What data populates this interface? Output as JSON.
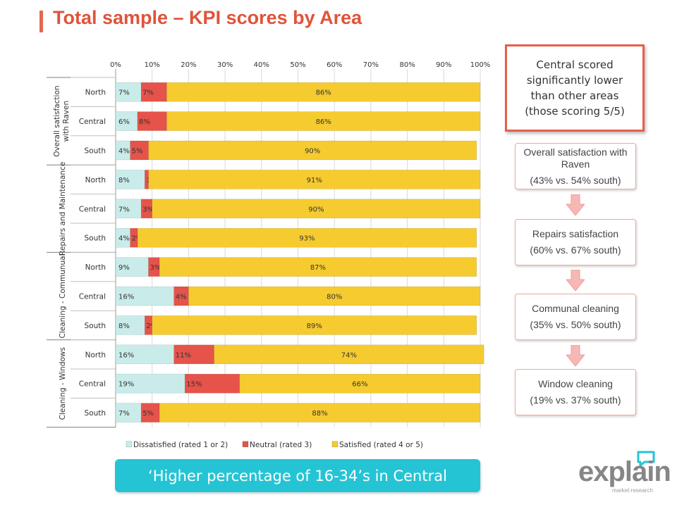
{
  "page": {
    "title": "Total sample – KPI scores by Area"
  },
  "chart_data": {
    "type": "bar",
    "orientation": "horizontal",
    "stacked": "percent",
    "x_ticks": [
      "0%",
      "10%",
      "20%",
      "30%",
      "40%",
      "50%",
      "60%",
      "70%",
      "80%",
      "90%",
      "100%"
    ],
    "xlim": [
      0,
      100
    ],
    "legend_position": "bottom",
    "groups": [
      "Overall satisfaction with Raven",
      "Repairs and Maintenance",
      "Cleaning - Communual",
      "Cleaning - Windows"
    ],
    "series": [
      {
        "name": "Dissatisfied (rated 1 or 2)",
        "color": "#c9ecea"
      },
      {
        "name": "Neutral (rated 3)",
        "color": "#e5534a"
      },
      {
        "name": "Satisfied (rated 4 or 5)",
        "color": "#f6cb2f"
      }
    ],
    "rows": [
      {
        "group": 0,
        "category": "North",
        "values": [
          7,
          7,
          86
        ]
      },
      {
        "group": 0,
        "category": "Central",
        "values": [
          6,
          8,
          86
        ]
      },
      {
        "group": 0,
        "category": "South",
        "values": [
          4,
          5,
          90
        ]
      },
      {
        "group": 1,
        "category": "North",
        "values": [
          8,
          1,
          91
        ]
      },
      {
        "group": 1,
        "category": "Central",
        "values": [
          7,
          3,
          90
        ]
      },
      {
        "group": 1,
        "category": "South",
        "values": [
          4,
          2,
          93
        ]
      },
      {
        "group": 2,
        "category": "North",
        "values": [
          9,
          3,
          87
        ]
      },
      {
        "group": 2,
        "category": "Central",
        "values": [
          16,
          4,
          80
        ]
      },
      {
        "group": 2,
        "category": "South",
        "values": [
          8,
          2,
          89
        ]
      },
      {
        "group": 3,
        "category": "North",
        "values": [
          16,
          11,
          74
        ]
      },
      {
        "group": 3,
        "category": "Central",
        "values": [
          19,
          15,
          66
        ]
      },
      {
        "group": 3,
        "category": "South",
        "values": [
          7,
          5,
          88
        ]
      }
    ],
    "gridlines": true
  },
  "callout": {
    "text": "Central scored significantly lower than other areas (those scoring 5/5)"
  },
  "flow": [
    {
      "line1": "Overall satisfaction with Raven",
      "line2": "(43% vs. 54% south)"
    },
    {
      "line1": "Repairs satisfaction",
      "line2": "(60% vs. 67% south)"
    },
    {
      "line1": "Communal cleaning",
      "line2": "(35% vs. 50% south)"
    },
    {
      "line1": "Window cleaning",
      "line2": "(19% vs. 37% south)"
    }
  ],
  "quote": {
    "text": "‘Higher percentage of 16-34’s in Central"
  },
  "logo": {
    "word": "explain",
    "sub": "market research"
  },
  "colors": {
    "title": "#e0533a",
    "accent_teal": "#25c4d4",
    "callout_border": "#e85f49",
    "arrow": "#f6b8b4"
  },
  "icons": {
    "logo_mark": "speech-bubble-icon",
    "flow_arrow": "down-arrow-icon"
  }
}
